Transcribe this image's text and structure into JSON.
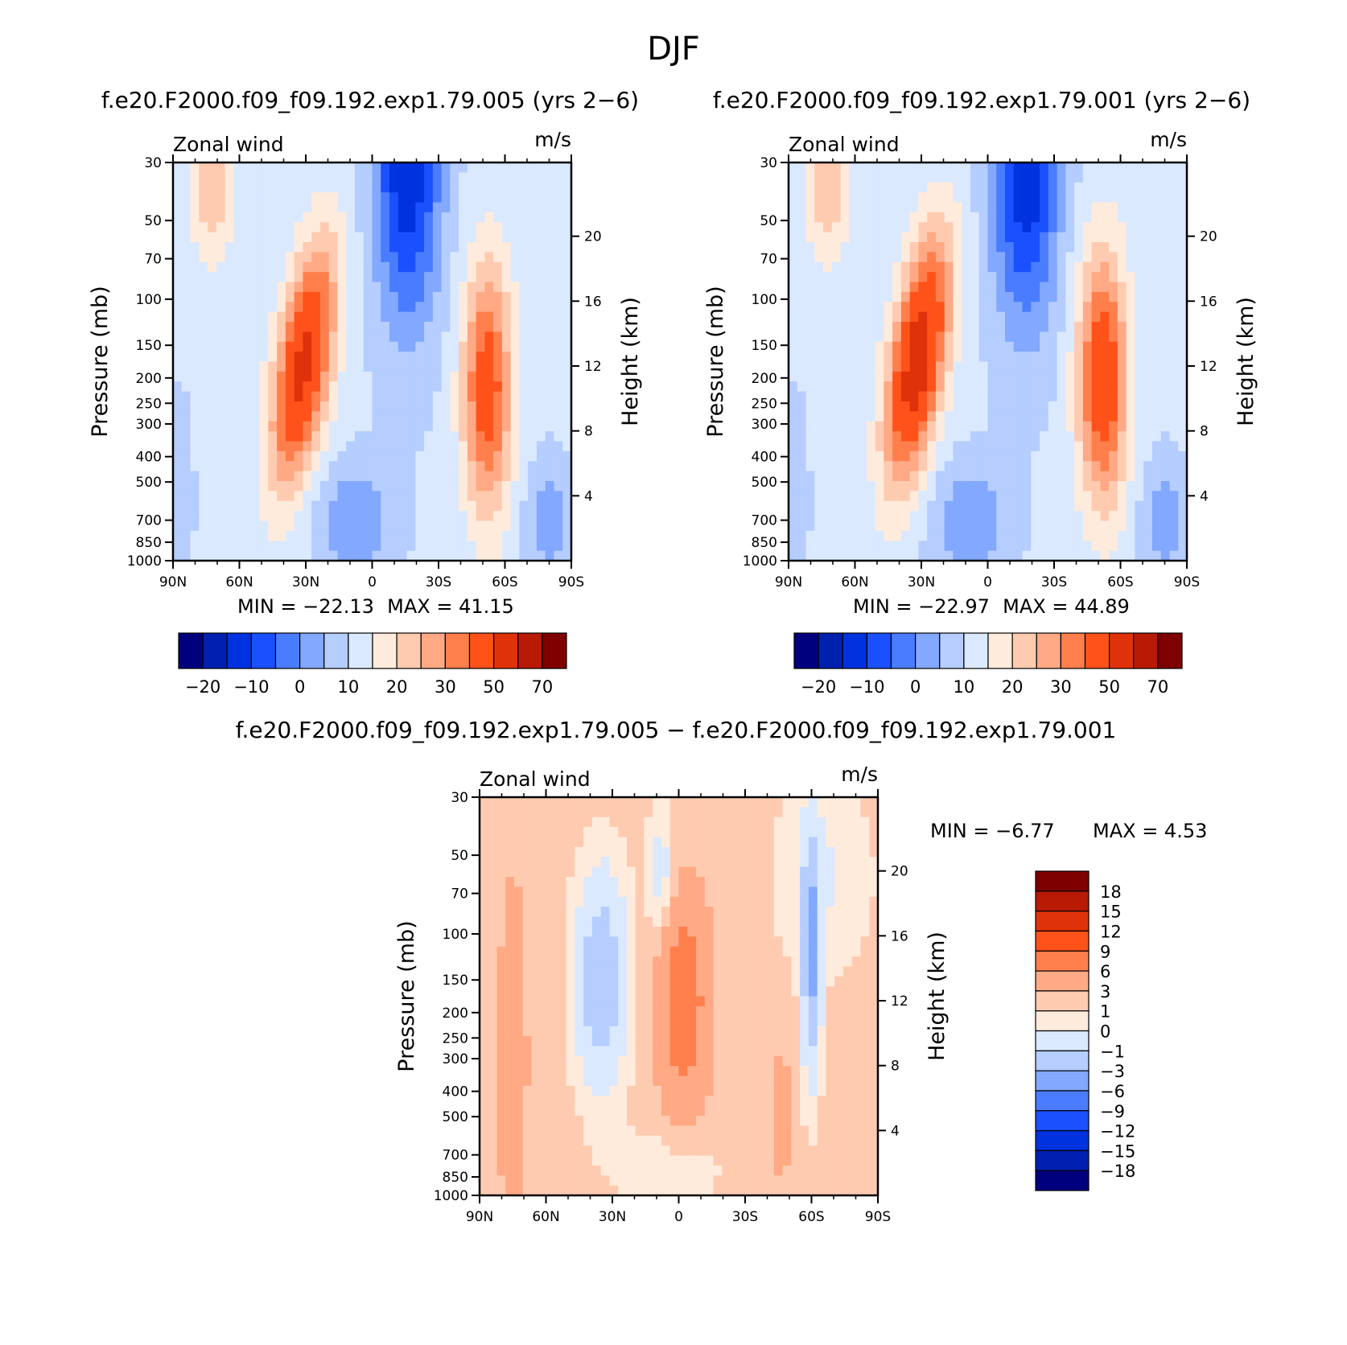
{
  "figure": {
    "title": "DJF",
    "diff_title": "f.e20.F2000.f09_f09.192.exp1.79.005 − f.e20.F2000.f09_f09.192.exp1.79.001"
  },
  "colors": {
    "main_scale": [
      "#00007f",
      "#0020b0",
      "#0032e0",
      "#1a50ff",
      "#4a7cff",
      "#82a8ff",
      "#b5cdff",
      "#dbe9ff",
      "#ffebdb",
      "#ffcbb0",
      "#ffa985",
      "#ff7f4c",
      "#ff521a",
      "#e0320a",
      "#b81a05",
      "#7f0000"
    ],
    "diff_scale": [
      "#00007f",
      "#0032e0",
      "#1a50ff",
      "#4a7cff",
      "#82a8ff",
      "#b5cdff",
      "#dbe9ff",
      "#ffebdb",
      "#ffcbb0",
      "#ffa985",
      "#ff7f4c",
      "#ff521a",
      "#e0320a",
      "#b81a05",
      "#7f0000"
    ]
  },
  "chart_data": [
    {
      "type": "heatmap",
      "title": "f.e20.F2000.f09_f09.192.exp1.79.005 (yrs 2−6)",
      "left_label": "Zonal wind",
      "right_label": "m/s",
      "xlabel": "",
      "ylabel": "Pressure (mb)",
      "y2label": "Height (km)",
      "xticks": [
        "90N",
        "60N",
        "30N",
        "0",
        "30S",
        "60S",
        "90S"
      ],
      "yticks": [
        30,
        50,
        70,
        100,
        150,
        200,
        250,
        300,
        400,
        500,
        700,
        850,
        1000
      ],
      "y2ticks": [
        4,
        8,
        12,
        16,
        20
      ],
      "min_text": "MIN = −22.13",
      "max_text": "MAX = 41.15",
      "min": -22.13,
      "max": 41.15,
      "colorbar_labels": [
        "−20",
        "−10",
        "0",
        "10",
        "20",
        "30",
        "50",
        "70"
      ],
      "colorbar_levels": [
        -25,
        -20,
        -15,
        -10,
        -5,
        0,
        5,
        10,
        15,
        20,
        25,
        30,
        40,
        50,
        60,
        70
      ],
      "jets": [
        {
          "lat": 31,
          "p": 180,
          "peak": 41.15
        },
        {
          "lat": -52,
          "p": 220,
          "peak": 33
        },
        {
          "lat": -16,
          "p": 34,
          "peak": -22.13
        }
      ]
    },
    {
      "type": "heatmap",
      "title": "f.e20.F2000.f09_f09.192.exp1.79.001 (yrs 2−6)",
      "left_label": "Zonal wind",
      "right_label": "m/s",
      "xlabel": "",
      "ylabel": "Pressure (mb)",
      "y2label": "Height (km)",
      "xticks": [
        "90N",
        "60N",
        "30N",
        "0",
        "30S",
        "60S",
        "90S"
      ],
      "yticks": [
        30,
        50,
        70,
        100,
        150,
        200,
        250,
        300,
        400,
        500,
        700,
        850,
        1000
      ],
      "y2ticks": [
        4,
        8,
        12,
        16,
        20
      ],
      "min_text": "MIN = −22.97",
      "max_text": "MAX = 44.89",
      "min": -22.97,
      "max": 44.89,
      "colorbar_labels": [
        "−20",
        "−10",
        "0",
        "10",
        "20",
        "30",
        "50",
        "70"
      ],
      "colorbar_levels": [
        -25,
        -20,
        -15,
        -10,
        -5,
        0,
        5,
        10,
        15,
        20,
        25,
        30,
        40,
        50,
        60,
        70
      ],
      "jets": [
        {
          "lat": 32,
          "p": 170,
          "peak": 44.89
        },
        {
          "lat": -52,
          "p": 200,
          "peak": 36
        },
        {
          "lat": -17,
          "p": 34,
          "peak": -22.97
        }
      ]
    },
    {
      "type": "heatmap",
      "title": "",
      "left_label": "Zonal wind",
      "right_label": "m/s",
      "xlabel": "",
      "ylabel": "Pressure (mb)",
      "y2label": "Height (km)",
      "xticks": [
        "90N",
        "60N",
        "30N",
        "0",
        "30S",
        "60S",
        "90S"
      ],
      "yticks": [
        30,
        50,
        70,
        100,
        150,
        200,
        250,
        300,
        400,
        500,
        700,
        850,
        1000
      ],
      "y2ticks": [
        4,
        8,
        12,
        16,
        20
      ],
      "min_text": "MIN =   −6.77",
      "max_text": "MAX =    4.53",
      "min": -6.77,
      "max": 4.53,
      "colorbar_labels": [
        "18",
        "15",
        "12",
        "9",
        "6",
        "3",
        "1",
        "0",
        "−1",
        "−3",
        "−6",
        "−9",
        "−12",
        "−15",
        "−18"
      ],
      "colorbar_levels": [
        -18,
        -15,
        -12,
        -9,
        -6,
        -3,
        -1,
        0,
        1,
        3,
        6,
        9,
        12,
        15,
        18
      ],
      "features": [
        {
          "lat": -2,
          "p": 180,
          "value": 4.5
        },
        {
          "lat": 36,
          "p": 120,
          "value": -5
        },
        {
          "lat": -60,
          "p": 120,
          "value": -6.77
        },
        {
          "lat": -46,
          "p": 500,
          "value": 2
        }
      ]
    }
  ]
}
